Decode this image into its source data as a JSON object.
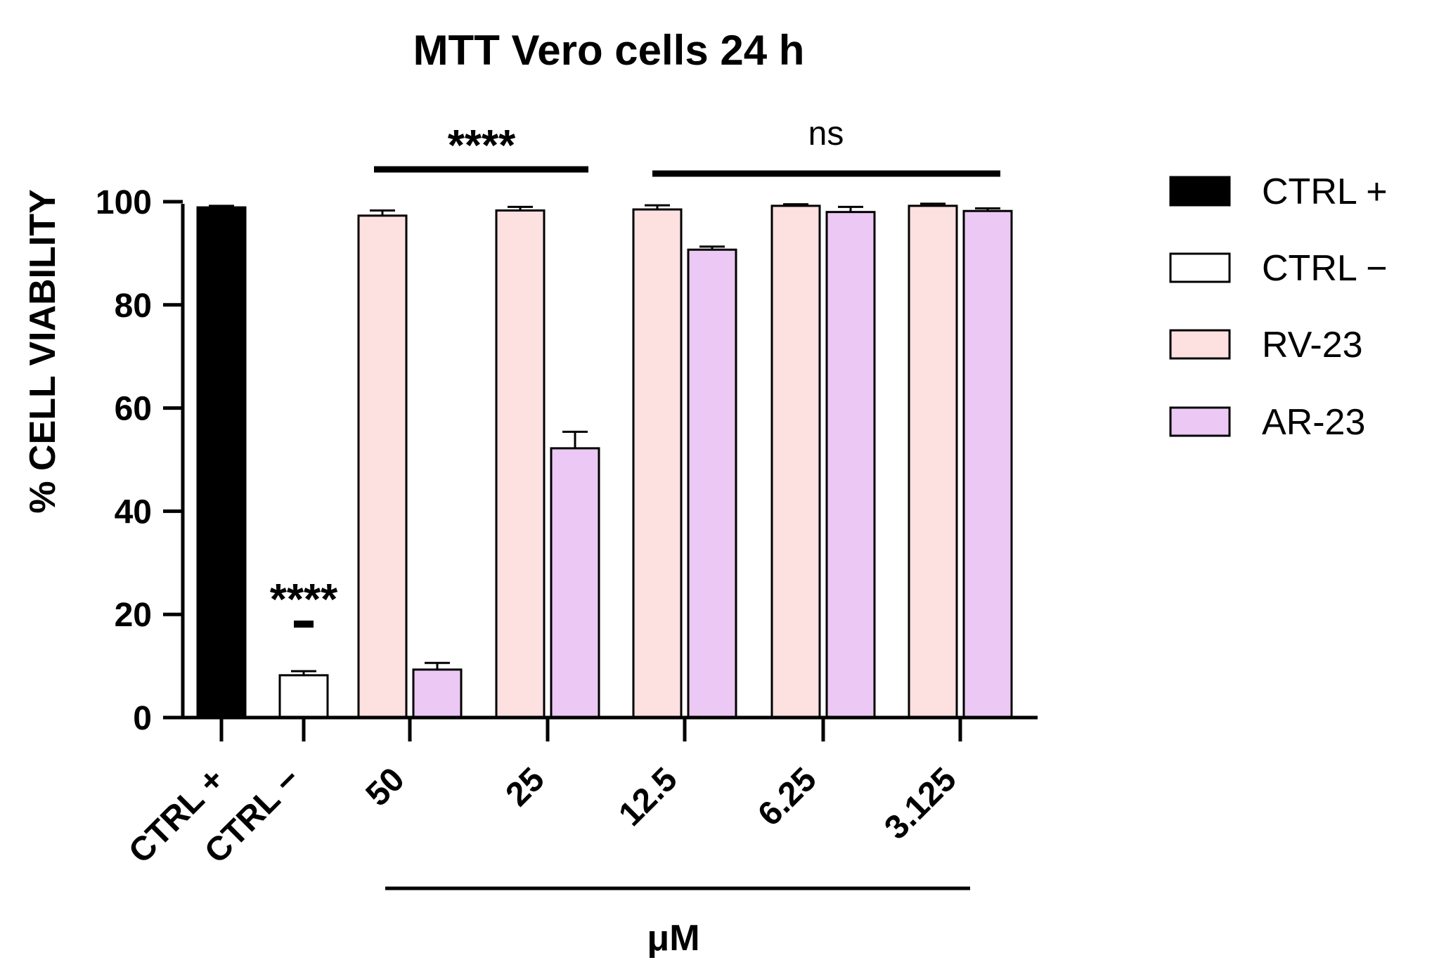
{
  "chart_data": {
    "type": "bar",
    "title": "MTT Vero cells 24 h",
    "ylabel": "% CELL VIABILITY",
    "xlabel": "μM",
    "ylim": [
      0,
      100
    ],
    "yticks": [
      0,
      20,
      40,
      60,
      80,
      100
    ],
    "categories": [
      "CTRL +",
      "CTRL −",
      "50",
      "25",
      "12.5",
      "6.25",
      "3.125"
    ],
    "series": [
      {
        "name": "CTRL +",
        "color": "#000000",
        "values": [
          98.9,
          null,
          null,
          null,
          null,
          null,
          null
        ],
        "errors": [
          0.3,
          null,
          null,
          null,
          null,
          null,
          null
        ]
      },
      {
        "name": "CTRL −",
        "color": "#ffffff",
        "values": [
          null,
          8.2,
          null,
          null,
          null,
          null,
          null
        ],
        "errors": [
          null,
          0.8,
          null,
          null,
          null,
          null,
          null
        ]
      },
      {
        "name": "RV-23",
        "color": "#fde0e0",
        "values": [
          null,
          null,
          97.3,
          98.3,
          98.5,
          99.2,
          99.2
        ],
        "errors": [
          null,
          null,
          1.0,
          0.7,
          0.8,
          0.3,
          0.4
        ]
      },
      {
        "name": "AR-23",
        "color": "#ecc8f4",
        "values": [
          null,
          null,
          9.3,
          52.2,
          90.7,
          98.0,
          98.2
        ],
        "errors": [
          null,
          null,
          1.3,
          3.2,
          0.6,
          1.0,
          0.5
        ]
      }
    ],
    "annotations": [
      {
        "text": "****",
        "target": "CTRL −"
      },
      {
        "text": "****",
        "target": "50–25"
      },
      {
        "text": "ns",
        "target": "12.5–3.125"
      }
    ],
    "legend_position": "right",
    "grid": false
  }
}
